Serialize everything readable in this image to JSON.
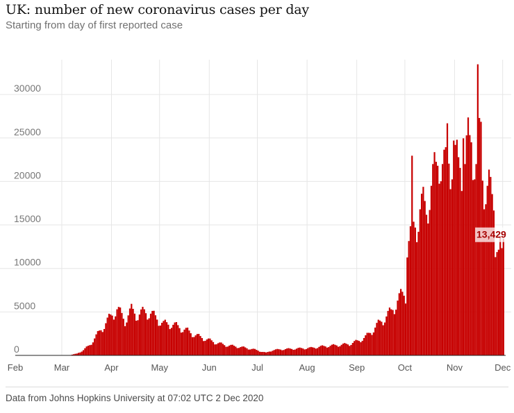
{
  "title": "UK: number of new coronavirus cases per day",
  "subtitle": "Starting from day of first reported case",
  "source": "Data from Johns Hopkins University at 07:02 UTC 2 Dec 2020",
  "colors": {
    "bar": "#c70000",
    "grid": "#e6e6e6",
    "callout": "#a60000"
  },
  "chart_data": {
    "type": "bar",
    "title": "UK: number of new coronavirus cases per day",
    "xlabel": "",
    "ylabel": "",
    "ylim": [
      0,
      34000
    ],
    "grid": true,
    "y_ticks": [
      0,
      5000,
      10000,
      15000,
      20000,
      25000,
      30000
    ],
    "y_tick_labels": [
      "0",
      "5000",
      "10000",
      "15000",
      "20000",
      "25000",
      "30000"
    ],
    "x_ticks": [
      {
        "label": "Feb",
        "day": 0
      },
      {
        "label": "Mar",
        "day": 29
      },
      {
        "label": "Apr",
        "day": 60
      },
      {
        "label": "May",
        "day": 90
      },
      {
        "label": "Jun",
        "day": 121
      },
      {
        "label": "Jul",
        "day": 151
      },
      {
        "label": "Aug",
        "day": 182
      },
      {
        "label": "Sep",
        "day": 213
      },
      {
        "label": "Oct",
        "day": 243
      },
      {
        "label": "Nov",
        "day": 274
      },
      {
        "label": "Dec",
        "day": 304
      }
    ],
    "series_start": "2020-01-31",
    "series_end": "2020-12-01",
    "anchors": [
      [
        -1,
        0
      ],
      [
        28,
        0
      ],
      [
        34,
        50
      ],
      [
        38,
        200
      ],
      [
        42,
        600
      ],
      [
        46,
        1200
      ],
      [
        50,
        2200
      ],
      [
        54,
        3200
      ],
      [
        58,
        4200
      ],
      [
        61,
        4900
      ],
      [
        63,
        5300
      ],
      [
        66,
        4600
      ],
      [
        68,
        4000
      ],
      [
        72,
        5200
      ],
      [
        76,
        4600
      ],
      [
        80,
        5000
      ],
      [
        84,
        4800
      ],
      [
        88,
        4200
      ],
      [
        92,
        3600
      ],
      [
        97,
        3600
      ],
      [
        102,
        3200
      ],
      [
        107,
        2800
      ],
      [
        112,
        2300
      ],
      [
        118,
        1900
      ],
      [
        124,
        1500
      ],
      [
        130,
        1200
      ],
      [
        136,
        1050
      ],
      [
        142,
        900
      ],
      [
        148,
        700
      ],
      [
        153,
        450
      ],
      [
        156,
        300
      ],
      [
        160,
        600
      ],
      [
        166,
        700
      ],
      [
        172,
        750
      ],
      [
        178,
        800
      ],
      [
        184,
        850
      ],
      [
        190,
        1000
      ],
      [
        196,
        1100
      ],
      [
        202,
        1200
      ],
      [
        208,
        1300
      ],
      [
        214,
        1700
      ],
      [
        218,
        2100
      ],
      [
        222,
        2800
      ],
      [
        226,
        3600
      ],
      [
        230,
        4300
      ],
      [
        234,
        5000
      ],
      [
        238,
        6300
      ],
      [
        241,
        6900
      ],
      [
        243,
        7100
      ],
      [
        244,
        12800
      ],
      [
        246,
        13500
      ],
      [
        248,
        14500
      ],
      [
        250,
        15500
      ],
      [
        252,
        16800
      ],
      [
        254,
        17000
      ],
      [
        256,
        16500
      ],
      [
        258,
        19000
      ],
      [
        260,
        20000
      ],
      [
        262,
        21000
      ],
      [
        264,
        23500
      ],
      [
        266,
        22000
      ],
      [
        268,
        21000
      ],
      [
        270,
        22500
      ],
      [
        272,
        23000
      ],
      [
        274,
        22000
      ],
      [
        276,
        21500
      ],
      [
        278,
        22500
      ],
      [
        280,
        22000
      ],
      [
        282,
        24000
      ],
      [
        284,
        25000
      ],
      [
        286,
        23000
      ],
      [
        288,
        21000
      ],
      [
        290,
        21000
      ],
      [
        292,
        20000
      ],
      [
        294,
        19500
      ],
      [
        296,
        18000
      ],
      [
        298,
        17000
      ],
      [
        300,
        13500
      ],
      [
        302,
        12500
      ],
      [
        304,
        13429
      ]
    ],
    "overrides": [
      [
        247,
        22961
      ],
      [
        257,
        15166
      ],
      [
        269,
        26688
      ],
      [
        273,
        24701
      ],
      [
        279,
        24957
      ],
      [
        283,
        25329
      ],
      [
        288,
        33470
      ],
      [
        289,
        27301
      ],
      [
        290,
        26860
      ],
      [
        295,
        21363
      ],
      [
        299,
        11299
      ],
      [
        301,
        12155
      ],
      [
        303,
        12330
      ]
    ],
    "last_value": 13429,
    "last_value_label": "13,429"
  }
}
